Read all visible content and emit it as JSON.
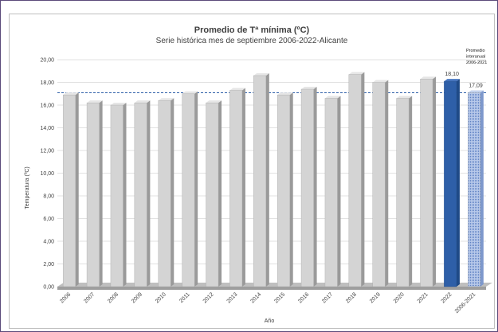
{
  "chart_data": {
    "type": "bar",
    "title": "Promedio de Tª mínima (ºC)",
    "subtitle": "Serie histórica mes de septiembre 2006-2022-Alicante",
    "xlabel": "Año",
    "ylabel": "Temperatura (ºC)",
    "categories": [
      "2006",
      "2007",
      "2008",
      "2009",
      "2010",
      "2011",
      "2012",
      "2013",
      "2014",
      "2015",
      "2016",
      "2017",
      "2018",
      "2019",
      "2020",
      "2021",
      "2022",
      "2006-2021"
    ],
    "values": [
      16.9,
      16.2,
      16.0,
      16.2,
      16.4,
      17.0,
      16.2,
      17.3,
      18.6,
      16.9,
      17.4,
      16.6,
      18.7,
      18.0,
      16.6,
      18.3,
      18.1,
      17.09
    ],
    "ylim": [
      0,
      20
    ],
    "yticks": [
      "0,00",
      "2,00",
      "4,00",
      "6,00",
      "8,00",
      "10,00",
      "12,00",
      "14,00",
      "16,00",
      "18,00",
      "20,00"
    ],
    "data_labels": [
      {
        "category": "2022",
        "text": "18,10"
      },
      {
        "category": "2006-2021",
        "text": "17,09"
      }
    ],
    "reference_line": {
      "value": 17.09,
      "style": "dashed",
      "color": "#2e5fa8"
    },
    "annotation": [
      "Promedio",
      "interanual",
      "2006-2021"
    ],
    "colors": {
      "bar_default": "#d4d4d4",
      "bar_highlight": "#2e5fa8",
      "bar_average": "#9fb7e0",
      "grid": "#d9d9d9"
    },
    "grid": true
  }
}
